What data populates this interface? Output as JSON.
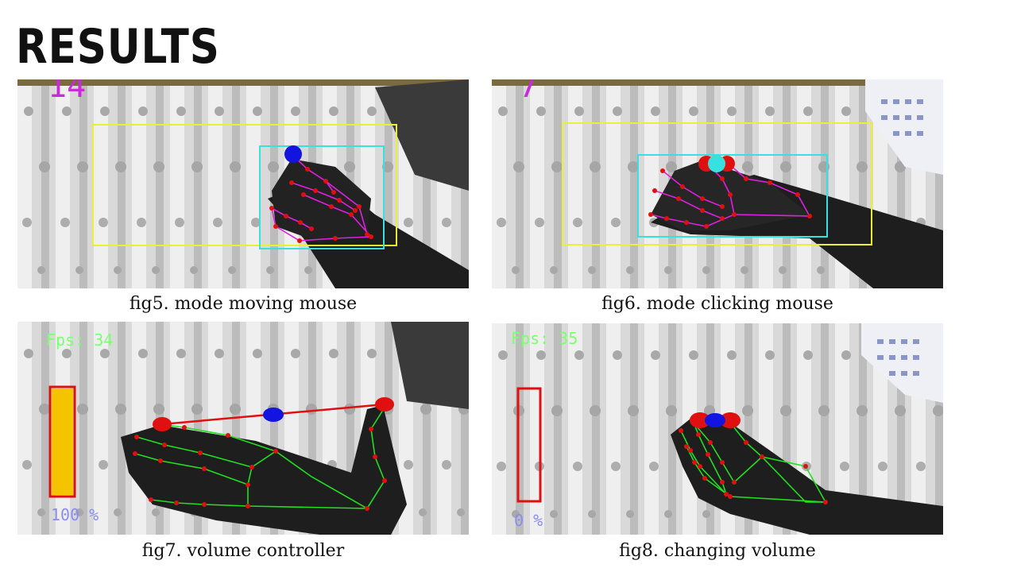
{
  "slide": {
    "title": "RESULTS"
  },
  "figures": [
    {
      "caption": "fig5. mode moving mouse",
      "overlay": "14"
    },
    {
      "caption": "fig6. mode clicking mouse",
      "overlay": "7"
    },
    {
      "caption": "fig7. volume controller",
      "fps_label": "Fps: 34",
      "volume_label": "100 %",
      "volume_level": 1.0
    },
    {
      "caption": "fig8. changing volume",
      "fps_label": "Fps: 35",
      "volume_label": "0 %",
      "volume_level": 0.0
    }
  ],
  "colors": {
    "bounding_box_outer": "#e8f03a",
    "bounding_box_inner": "#38e0e0",
    "landmark_point": "#e01010",
    "landmark_line_mouse": "#e020e0",
    "landmark_line_volume": "#20e020",
    "cursor_point": "#1414e0",
    "volume_bar_fill": "#f5c400",
    "volume_bar_border": "#e01010",
    "overlay_text": "#c82bd8",
    "fps_text": "#7cff70"
  }
}
